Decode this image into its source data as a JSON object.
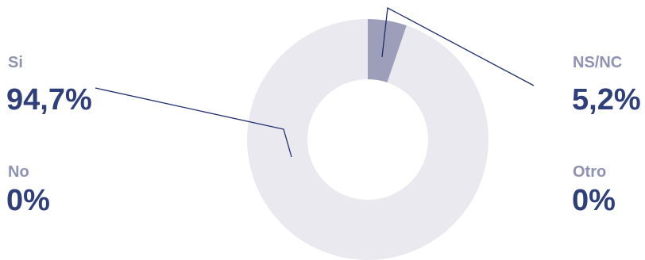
{
  "chart_data": {
    "type": "pie",
    "donut": true,
    "categories": [
      "Si",
      "NS/NC",
      "No",
      "Otro"
    ],
    "values": [
      94.7,
      5.2,
      0,
      0
    ],
    "value_labels": [
      "94,7%",
      "5,2%",
      "0%",
      "0%"
    ],
    "colors": {
      "Si": "#e9e9ef",
      "NS/NC": "#9c9eba",
      "No": "#e9e9ef",
      "Otro": "#e9e9ef",
      "category_label": "#8f93b3",
      "value_label": "#2e3f7a",
      "leader_line": "#1f2e6b"
    },
    "legend": "none"
  }
}
